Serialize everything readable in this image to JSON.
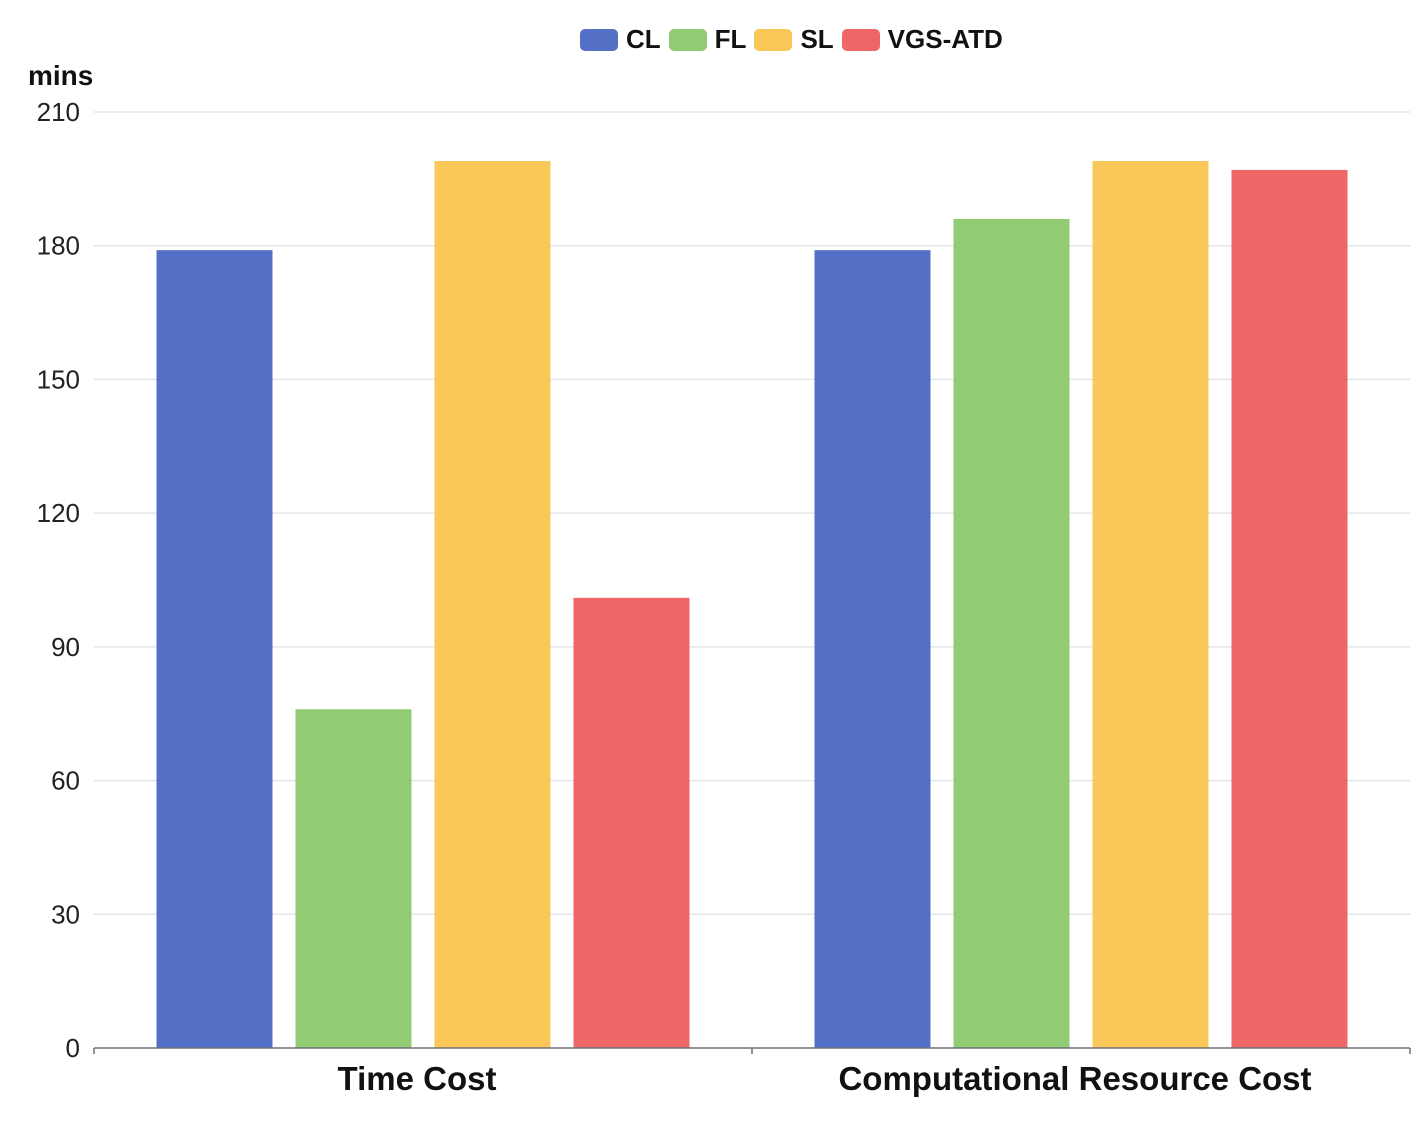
{
  "chart_data": {
    "type": "bar",
    "title": "",
    "ylabel": "mins",
    "xlabel": "",
    "ylim": [
      0,
      210
    ],
    "yticks": [
      0,
      30,
      60,
      90,
      120,
      150,
      180,
      210
    ],
    "categories": [
      "Time Cost",
      "Computational Resource Cost"
    ],
    "series": [
      {
        "name": "CL",
        "color": "#5470c6",
        "values": [
          179,
          179
        ]
      },
      {
        "name": "FL",
        "color": "#91cc75",
        "values": [
          76,
          186
        ]
      },
      {
        "name": "SL",
        "color": "#fac858",
        "values": [
          199,
          199
        ]
      },
      {
        "name": "VGS-ATD",
        "color": "#ee6666",
        "values": [
          101,
          197
        ]
      }
    ],
    "legend_position": "top-center",
    "grid": true
  }
}
